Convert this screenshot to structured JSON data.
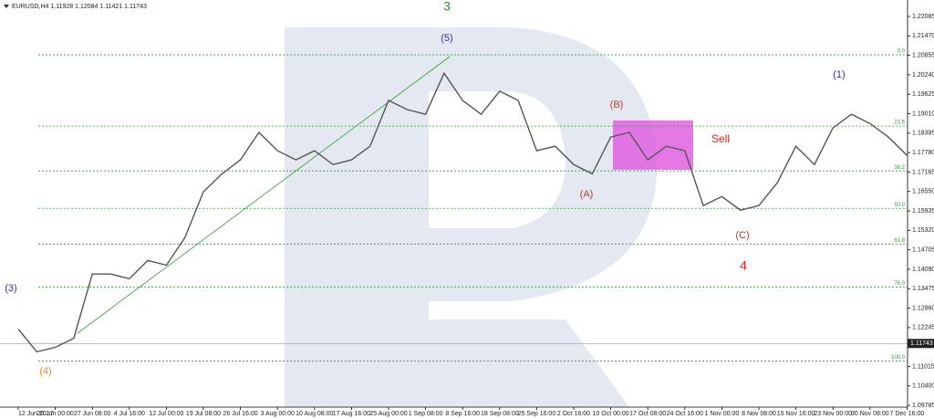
{
  "chart_data": {
    "type": "line",
    "title": "EURUSD,H4  1.11928 1.12084 1.11421 1.11743",
    "categories": [
      "12 Jun 2017",
      null,
      "20 Jun 00:00",
      null,
      "27 Jun 08:00",
      null,
      "4 Jul 16:00",
      null,
      "12 Jul 00:00",
      null,
      "19 Jul 08:00",
      null,
      "26 Jul 16:00",
      null,
      "3 Aug 00:00",
      null,
      "10 Aug 08:00",
      null,
      "17 Aug 16:00",
      null,
      "25 Aug 00:00",
      null,
      "1 Sep 08:00",
      null,
      "8 Sep 16:00",
      null,
      "18 Sep 08:00",
      null,
      "25 Sep 16:00",
      null,
      "2 Oct 16:00",
      null,
      "10 Oct 00:00",
      null,
      "17 Oct 08:00",
      null,
      "24 Oct 16:00",
      null,
      "1 Nov 00:00",
      null,
      "8 Nov 08:00",
      null,
      "15 Nov 16:00",
      null,
      "23 Nov 00:00",
      null,
      "30 Nov 08:00",
      null,
      "7 Dec 16:00"
    ],
    "series": [
      {
        "color": "#555555",
        "values": [
          1.122,
          1.1148,
          1.1162,
          1.1191,
          1.1394,
          1.1394,
          1.1379,
          1.1437,
          1.1422,
          1.1509,
          1.1654,
          1.1711,
          1.1755,
          1.1842,
          1.1784,
          1.1755,
          1.1784,
          1.174,
          1.1755,
          1.1798,
          1.1943,
          1.1914,
          1.1899,
          1.2029,
          1.1943,
          1.1899,
          1.1972,
          1.1943,
          1.1784,
          1.1798,
          1.174,
          1.1711,
          1.1827,
          1.1842,
          1.1755,
          1.1798,
          1.1784,
          1.161,
          1.1639,
          1.1596,
          1.161,
          1.1683,
          1.1798,
          1.174,
          1.1856,
          1.1899,
          1.187,
          1.1827,
          1.1769
        ]
      }
    ],
    "ylim": [
      1.0973,
      1.22605
    ],
    "yticks": [
      1.22085,
      {
        "value": 1.2147,
        "label": "1.21470"
      },
      1.20855,
      {
        "value": 1.2024,
        "label": "1.20240"
      },
      1.19625,
      {
        "value": 1.1901,
        "label": "1.19010"
      },
      1.18395,
      {
        "value": 1.1778,
        "label": "1.17780"
      },
      1.17165,
      {
        "value": 1.1655,
        "label": "1.16550"
      },
      1.15935,
      {
        "value": 1.1532,
        "label": "1.15320"
      },
      1.14705,
      {
        "value": 1.1409,
        "label": "1.14090"
      },
      1.13475,
      {
        "value": 1.1286,
        "label": "1.12860"
      },
      1.12245,
      1.11015,
      {
        "value": 1.104,
        "label": "1.10400"
      },
      1.09785
    ],
    "current_price": 1.11743,
    "fib_levels": [
      {
        "value": 1.20871,
        "label": "0.0"
      },
      {
        "value": 1.18617,
        "label": "23.6"
      },
      {
        "value": 1.17201,
        "label": "38.2"
      },
      {
        "value": 1.16016,
        "label": "50.0"
      },
      {
        "value": 1.14889,
        "label": "61.8"
      },
      {
        "value": 1.13531,
        "label": "76.0"
      },
      {
        "value": 1.1119,
        "label": "100.0"
      }
    ],
    "annotations": [
      "3",
      "(5)",
      "(3)",
      "(4)",
      "(B)",
      "(A)",
      "(C)",
      "4",
      "(1)",
      "Sell"
    ]
  }
}
